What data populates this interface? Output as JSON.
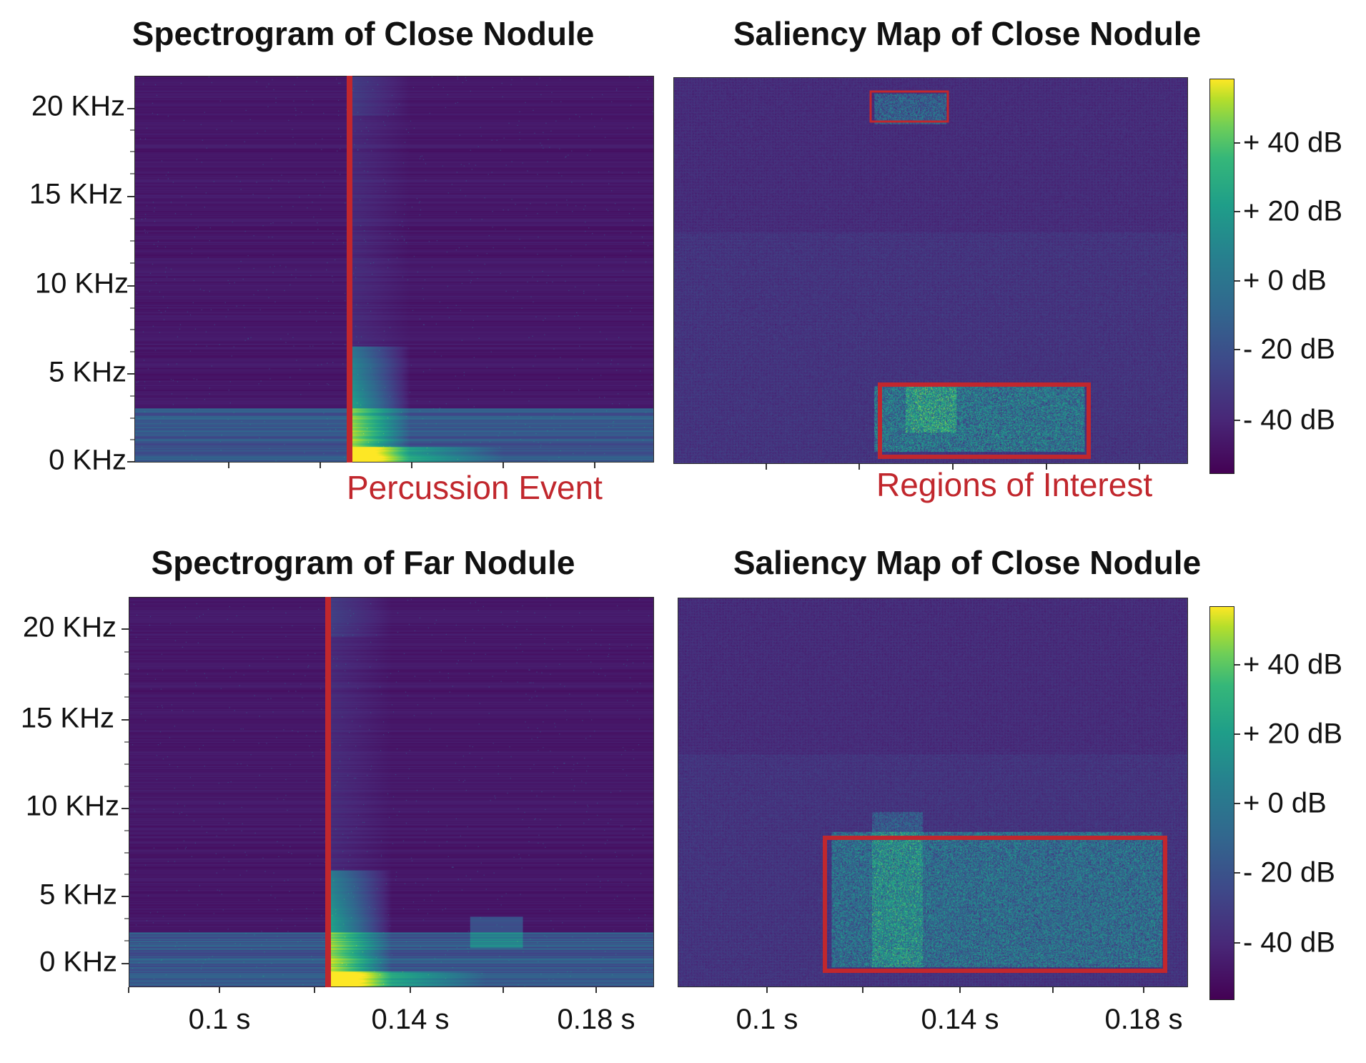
{
  "colors": {
    "annotation_red": "#c1272d",
    "colormap": "viridis",
    "background_purple": "#440154"
  },
  "panels": [
    {
      "title": "Spectrogram of Close Nodule",
      "ytick_labels": [
        "20 KHz",
        "15 KHz",
        "10 KHz",
        "5 KHz",
        "0 KHz"
      ],
      "xtick_labels": [],
      "annotation": "Percussion Event"
    },
    {
      "title": "Saliency Map of Close Nodule",
      "xtick_labels": [],
      "colorbar_labels": [
        "+ 40 dB",
        "+ 20 dB",
        "+ 0 dB",
        "- 20 dB",
        "- 40 dB"
      ],
      "annotation": "Regions of Interest"
    },
    {
      "title": "Spectrogram of Far Nodule",
      "ytick_labels": [
        "20 KHz",
        "15 KHz",
        "10 KHz",
        "5 KHz",
        "0 KHz"
      ],
      "xtick_labels": [
        "0.1 s",
        "0.14 s",
        "0.18 s"
      ]
    },
    {
      "title": "Saliency Map of Close Nodule",
      "xtick_labels": [
        "0.1 s",
        "0.14 s",
        "0.18 s"
      ],
      "colorbar_labels": [
        "+ 40 dB",
        "+ 20 dB",
        "+ 0 dB",
        "- 20 dB",
        "- 40 dB"
      ]
    }
  ],
  "chart_data": [
    {
      "type": "heatmap",
      "title": "Spectrogram of Close Nodule",
      "y_ticks": [
        "20 KHz",
        "15 KHz",
        "10 KHz",
        "5 KHz",
        "0 KHz"
      ],
      "percussion_event_marker": "vertical red line at onset of broadband burst"
    },
    {
      "type": "heatmap",
      "title": "Saliency Map of Close Nodule",
      "colorbar_ticks": [
        "+ 40 dB",
        "+ 20 dB",
        "+ 0 dB",
        "- 20 dB",
        "- 40 dB"
      ],
      "regions_of_interest": 2
    },
    {
      "type": "heatmap",
      "title": "Spectrogram of Far Nodule",
      "x_ticks": [
        "0.1 s",
        "0.14 s",
        "0.18 s"
      ],
      "y_ticks": [
        "20 KHz",
        "15 KHz",
        "10 KHz",
        "5 KHz",
        "0 KHz"
      ]
    },
    {
      "type": "heatmap",
      "title": "Saliency Map of Close Nodule",
      "x_ticks": [
        "0.1 s",
        "0.14 s",
        "0.18 s"
      ],
      "colorbar_ticks": [
        "+ 40 dB",
        "+ 20 dB",
        "+ 0 dB",
        "- 20 dB",
        "- 40 dB"
      ],
      "regions_of_interest": 1
    }
  ]
}
